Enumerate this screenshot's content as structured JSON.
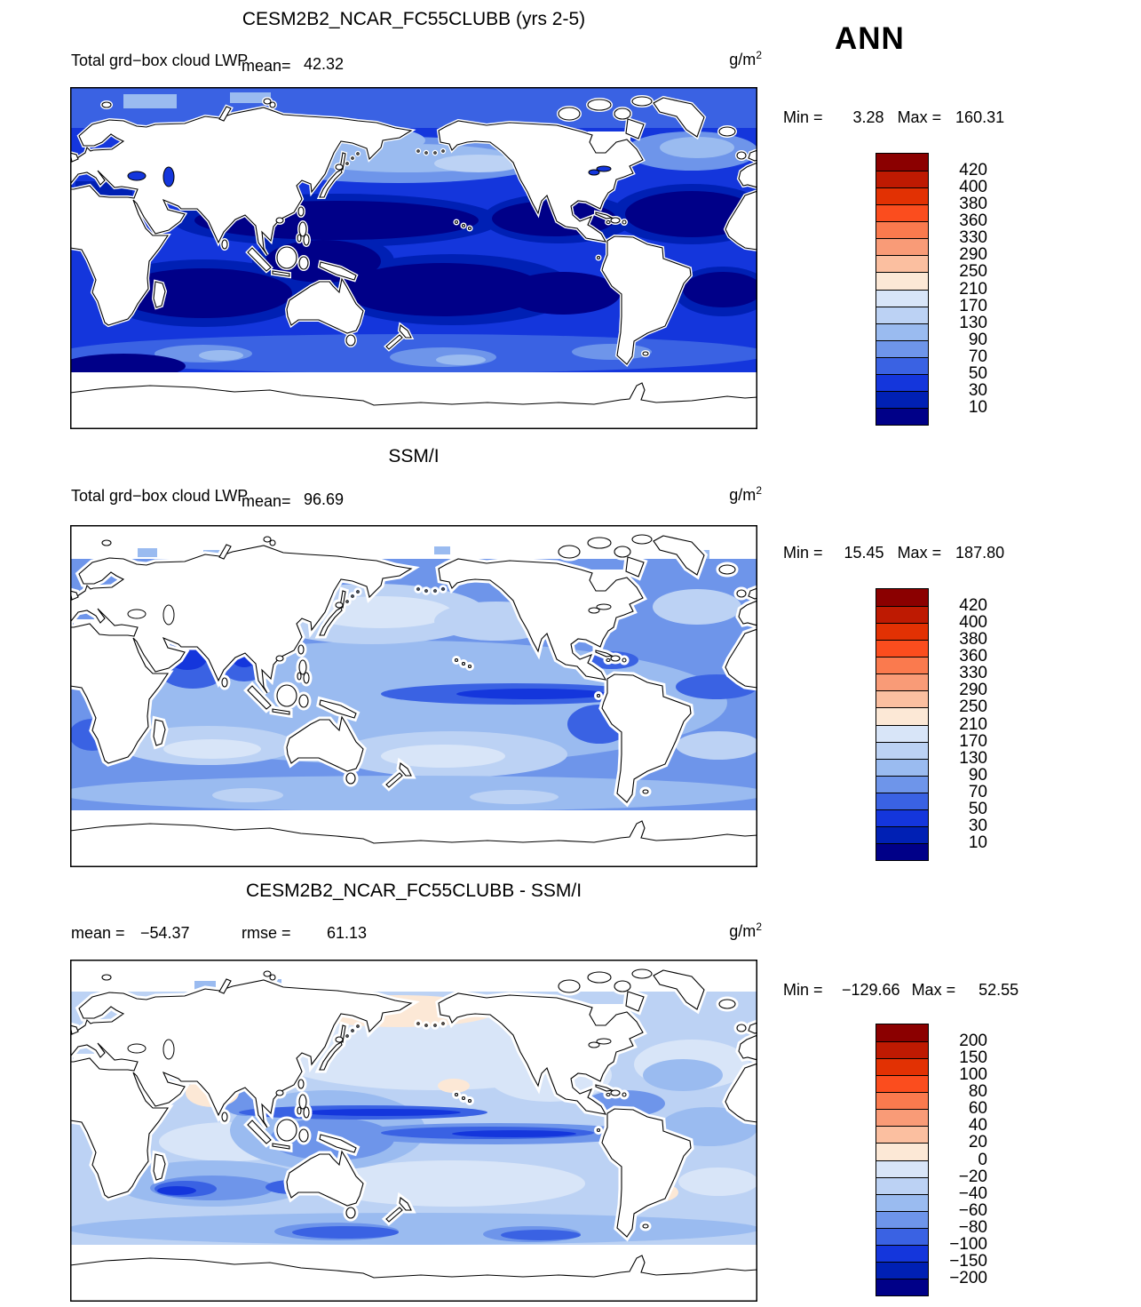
{
  "header": {
    "season_label": "ANN"
  },
  "palette": [
    "#8B0000",
    "#BE1A02",
    "#E23103",
    "#FB4D1E",
    "#FA7A4E",
    "#F99B77",
    "#FBBFA0",
    "#FCE8D6",
    "#D8E5F8",
    "#BCD2F4",
    "#9ABBF0",
    "#6E95EA",
    "#3A62E3",
    "#1436DC",
    "#0020B4",
    "#000088"
  ],
  "panels": [
    {
      "title": "CESM2B2_NCAR_FC55CLUBB (yrs 2-5)",
      "var_label": "Total grd−box cloud LWP",
      "mean_label": "mean=",
      "mean_value": "42.32",
      "units_base": "g/m",
      "units_exp": "2",
      "min_label": "Min =",
      "min_value": "3.28",
      "max_label": "Max =",
      "max_value": "160.31",
      "colorbar_labels": [
        "420",
        "400",
        "380",
        "360",
        "330",
        "290",
        "250",
        "210",
        "170",
        "130",
        "90",
        "70",
        "50",
        "30",
        "10"
      ]
    },
    {
      "title": "SSM/I",
      "var_label": "Total grd−box cloud LWP",
      "mean_label": "mean=",
      "mean_value": "96.69",
      "units_base": "g/m",
      "units_exp": "2",
      "min_label": "Min =",
      "min_value": "15.45",
      "max_label": "Max =",
      "max_value": "187.80",
      "colorbar_labels": [
        "420",
        "400",
        "380",
        "360",
        "330",
        "290",
        "250",
        "210",
        "170",
        "130",
        "90",
        "70",
        "50",
        "30",
        "10"
      ]
    },
    {
      "title": "CESM2B2_NCAR_FC55CLUBB - SSM/I",
      "mean_label": "mean =",
      "mean_value": "−54.37",
      "rmse_label": "rmse =",
      "rmse_value": "61.13",
      "units_base": "g/m",
      "units_exp": "2",
      "min_label": "Min =",
      "min_value": "−129.66",
      "max_label": "Max =",
      "max_value": "52.55",
      "colorbar_labels": [
        "200",
        "150",
        "100",
        "80",
        "60",
        "40",
        "20",
        "0",
        "−20",
        "−40",
        "−60",
        "−80",
        "−100",
        "−150",
        "−200"
      ]
    }
  ],
  "chart_data": [
    {
      "type": "heatmap",
      "subtype": "global lat-lon filled contour map",
      "title": "CESM2B2_NCAR_FC55CLUBB (yrs 2-5)",
      "variable": "Total grd-box cloud LWP",
      "season": "ANN",
      "units": "g/m^2",
      "mean": 42.32,
      "min": 3.28,
      "max": 160.31,
      "contour_levels": [
        10,
        30,
        50,
        70,
        90,
        130,
        170,
        210,
        250,
        290,
        330,
        360,
        380,
        400,
        420
      ],
      "colormap": "blue (low) to dark red (high), 16 levels",
      "notes": "Ocean-only field, land masked white; most ocean values fall in the 10-90 range (blues), darkest navy (<10) in subtropical gyres, lighter blues (90-210) in N Pacific / N Atlantic storm tracks and Southern Ocean"
    },
    {
      "type": "heatmap",
      "subtype": "global lat-lon filled contour map",
      "title": "SSM/I",
      "variable": "Total grd-box cloud LWP",
      "season": "ANN",
      "units": "g/m^2",
      "mean": 96.69,
      "min": 15.45,
      "max": 187.8,
      "contour_levels": [
        10,
        30,
        50,
        70,
        90,
        130,
        170,
        210,
        250,
        290,
        330,
        360,
        380,
        400,
        420
      ],
      "colormap": "blue (low) to dark red (high), 16 levels",
      "notes": "Observations; generally lighter blues (90-210) over most oceans, palest values in central N Pacific, darker blue (30-90) near coasts, Arabian Sea, Bay of Bengal and equatorial east Pacific; coastal cells masked white"
    },
    {
      "type": "heatmap",
      "subtype": "global lat-lon filled contour difference map",
      "title": "CESM2B2_NCAR_FC55CLUBB - SSM/I",
      "variable": "Total grd-box cloud LWP difference",
      "season": "ANN",
      "units": "g/m^2",
      "mean": -54.37,
      "rmse": 61.13,
      "min": -129.66,
      "max": 52.55,
      "contour_levels": [
        -200,
        -150,
        -100,
        -80,
        -60,
        -40,
        -20,
        0,
        20,
        40,
        60,
        80,
        100,
        150,
        200
      ],
      "colormap": "blue (negative) to red (positive), 16 levels",
      "notes": "Mostly negative (model lower than SSM/I): light-to-medium blues (-20 to -80) over most oceans, strong negative bands (-100 to -200) along equatorial Pacific and S Indian Ocean; small positive (peach, 0-60) patches in NW Pacific subarctic, Arabian Sea coast and SW Atlantic"
    }
  ]
}
